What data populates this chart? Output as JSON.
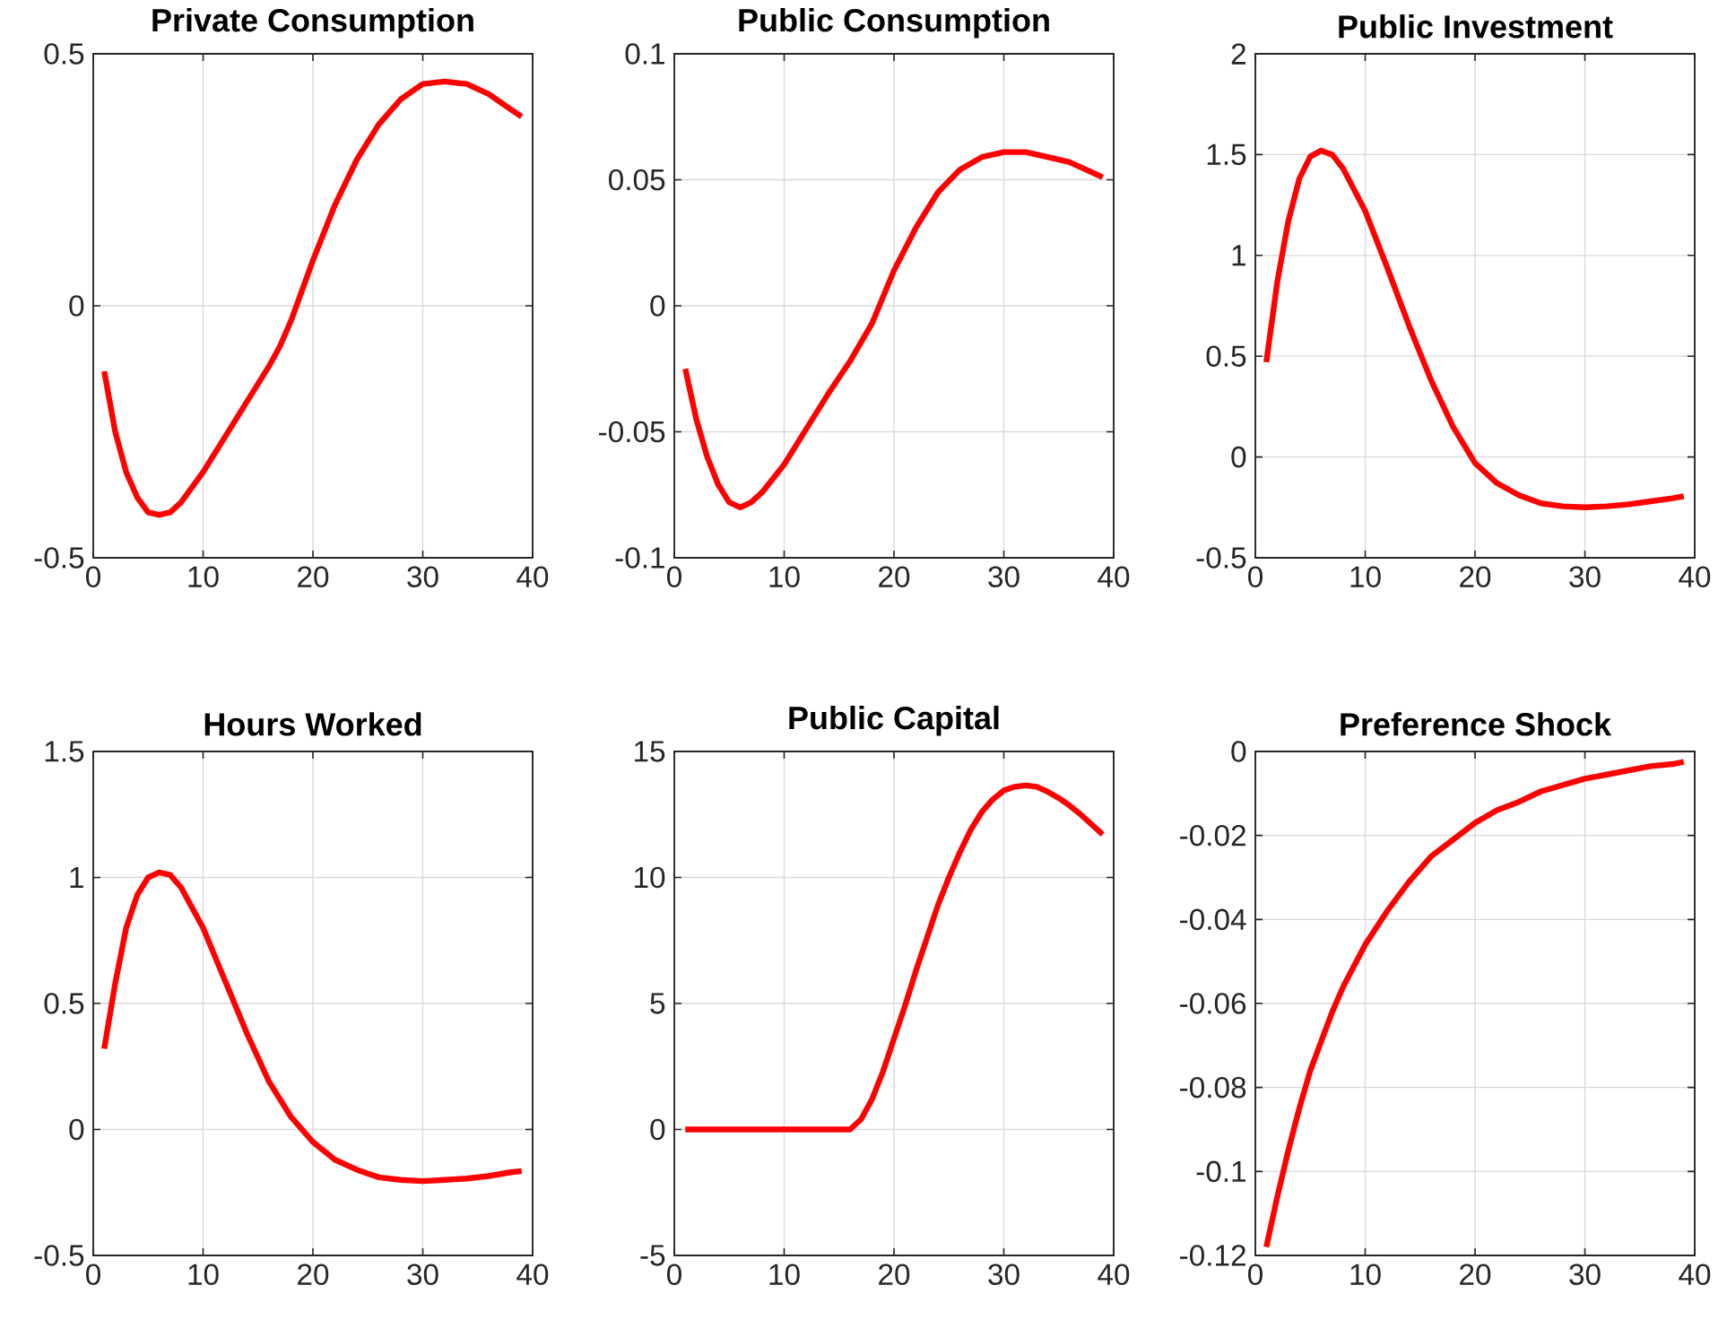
{
  "chart_data": [
    {
      "type": "line",
      "title": "Private Consumption",
      "color": "#ff0000",
      "grid": true,
      "xlim": [
        0,
        40
      ],
      "xticks": [
        0,
        10,
        20,
        30,
        40
      ],
      "ylim": [
        -0.5,
        0.5
      ],
      "yticks": [
        -0.5,
        0,
        0.5
      ],
      "x": [
        1,
        2,
        3,
        4,
        5,
        6,
        7,
        8,
        10,
        12,
        14,
        16,
        17,
        18,
        20,
        22,
        24,
        26,
        28,
        30,
        32,
        34,
        36,
        38,
        39
      ],
      "values": [
        -0.13,
        -0.25,
        -0.33,
        -0.38,
        -0.41,
        -0.415,
        -0.41,
        -0.39,
        -0.33,
        -0.26,
        -0.19,
        -0.12,
        -0.08,
        -0.03,
        0.09,
        0.2,
        0.29,
        0.36,
        0.41,
        0.44,
        0.445,
        0.44,
        0.42,
        0.39,
        0.375
      ]
    },
    {
      "type": "line",
      "title": "Public Consumption",
      "color": "#ff0000",
      "grid": true,
      "xlim": [
        0,
        40
      ],
      "xticks": [
        0,
        10,
        20,
        30,
        40
      ],
      "ylim": [
        -0.1,
        0.1
      ],
      "yticks": [
        -0.1,
        -0.05,
        0,
        0.05,
        0.1
      ],
      "x": [
        1,
        2,
        3,
        4,
        5,
        6,
        7,
        8,
        10,
        12,
        14,
        16,
        18,
        20,
        22,
        24,
        26,
        28,
        30,
        32,
        34,
        36,
        38,
        39
      ],
      "values": [
        -0.025,
        -0.045,
        -0.06,
        -0.071,
        -0.078,
        -0.08,
        -0.078,
        -0.074,
        -0.063,
        -0.049,
        -0.035,
        -0.022,
        -0.007,
        0.014,
        0.031,
        0.045,
        0.054,
        0.059,
        0.061,
        0.061,
        0.059,
        0.057,
        0.053,
        0.051
      ]
    },
    {
      "type": "line",
      "title": "Public Investment",
      "color": "#ff0000",
      "grid": true,
      "xlim": [
        0,
        40
      ],
      "xticks": [
        0,
        10,
        20,
        30,
        40
      ],
      "ylim": [
        -0.5,
        2
      ],
      "yticks": [
        -0.5,
        0,
        0.5,
        1,
        1.5,
        2
      ],
      "x": [
        1,
        2,
        3,
        4,
        5,
        6,
        7,
        8,
        10,
        12,
        14,
        16,
        18,
        20,
        22,
        24,
        26,
        28,
        30,
        32,
        34,
        36,
        38,
        39
      ],
      "values": [
        0.47,
        0.87,
        1.17,
        1.38,
        1.49,
        1.52,
        1.5,
        1.43,
        1.22,
        0.94,
        0.65,
        0.38,
        0.15,
        -0.03,
        -0.13,
        -0.19,
        -0.23,
        -0.245,
        -0.25,
        -0.245,
        -0.235,
        -0.22,
        -0.205,
        -0.195
      ]
    },
    {
      "type": "line",
      "title": "Hours Worked",
      "color": "#ff0000",
      "grid": true,
      "xlim": [
        0,
        40
      ],
      "xticks": [
        0,
        10,
        20,
        30,
        40
      ],
      "ylim": [
        -0.5,
        1.5
      ],
      "yticks": [
        -0.5,
        0,
        0.5,
        1,
        1.5
      ],
      "x": [
        1,
        2,
        3,
        4,
        5,
        6,
        7,
        8,
        10,
        12,
        14,
        16,
        18,
        20,
        22,
        24,
        26,
        28,
        30,
        32,
        34,
        36,
        38,
        39
      ],
      "values": [
        0.32,
        0.58,
        0.8,
        0.93,
        1.0,
        1.02,
        1.01,
        0.96,
        0.8,
        0.59,
        0.38,
        0.19,
        0.05,
        -0.05,
        -0.12,
        -0.16,
        -0.19,
        -0.2,
        -0.205,
        -0.2,
        -0.195,
        -0.185,
        -0.17,
        -0.165
      ]
    },
    {
      "type": "line",
      "title": "Public Capital",
      "color": "#ff0000",
      "grid": true,
      "xlim": [
        0,
        40
      ],
      "xticks": [
        0,
        10,
        20,
        30,
        40
      ],
      "ylim": [
        -5,
        15
      ],
      "yticks": [
        -5,
        0,
        5,
        10,
        15
      ],
      "x": [
        1,
        4,
        8,
        12,
        16,
        17,
        18,
        19,
        20,
        21,
        22,
        23,
        24,
        25,
        26,
        27,
        28,
        29,
        30,
        31,
        32,
        33,
        34,
        35,
        36,
        37,
        38,
        39
      ],
      "values": [
        0,
        0,
        0,
        0,
        0,
        0.4,
        1.2,
        2.3,
        3.6,
        4.9,
        6.3,
        7.6,
        8.9,
        10.0,
        11.0,
        11.9,
        12.6,
        13.1,
        13.45,
        13.6,
        13.65,
        13.6,
        13.4,
        13.15,
        12.85,
        12.5,
        12.1,
        11.7
      ]
    },
    {
      "type": "line",
      "title": "Preference Shock",
      "color": "#ff0000",
      "grid": true,
      "xlim": [
        0,
        40
      ],
      "xticks": [
        0,
        10,
        20,
        30,
        40
      ],
      "ylim": [
        -0.12,
        0
      ],
      "yticks": [
        -0.12,
        -0.1,
        -0.08,
        -0.06,
        -0.04,
        -0.02,
        0
      ],
      "x": [
        1,
        2,
        3,
        4,
        5,
        6,
        7,
        8,
        10,
        12,
        14,
        16,
        18,
        20,
        22,
        24,
        26,
        28,
        30,
        32,
        34,
        36,
        38,
        39
      ],
      "values": [
        -0.118,
        -0.106,
        -0.095,
        -0.085,
        -0.076,
        -0.069,
        -0.062,
        -0.056,
        -0.046,
        -0.038,
        -0.031,
        -0.025,
        -0.021,
        -0.017,
        -0.014,
        -0.012,
        -0.0095,
        -0.008,
        -0.0065,
        -0.0055,
        -0.0045,
        -0.0035,
        -0.003,
        -0.0025
      ]
    }
  ]
}
